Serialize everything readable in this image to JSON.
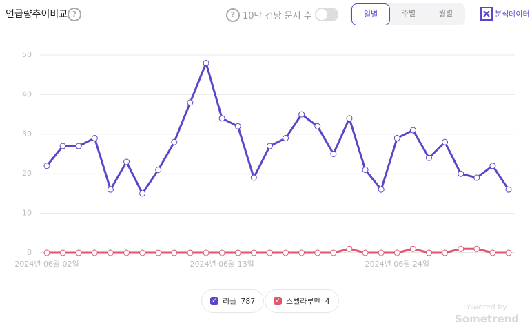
{
  "header": {
    "title": "언급량추이비교",
    "help": "?",
    "per_label": "10만 건당 문서 수",
    "tabs": [
      "일별",
      "주별",
      "월별"
    ],
    "export": "분석데이터"
  },
  "chart_data": {
    "type": "line",
    "categories": [
      "2024년 06월 02일",
      null,
      null,
      null,
      null,
      null,
      null,
      null,
      null,
      null,
      null,
      "2024년 06월 13일",
      null,
      null,
      null,
      null,
      null,
      null,
      null,
      null,
      null,
      null,
      "2024년 06월 24일",
      null,
      null,
      null,
      null,
      null,
      null,
      null
    ],
    "series": [
      {
        "name": "리플",
        "total": 787,
        "color": "#5a46c8",
        "values": [
          22,
          27,
          27,
          29,
          16,
          23,
          15,
          21,
          28,
          38,
          48,
          34,
          32,
          19,
          27,
          29,
          35,
          32,
          25,
          34,
          21,
          16,
          29,
          31,
          24,
          28,
          20,
          19,
          22,
          16
        ]
      },
      {
        "name": "스텔라루멘",
        "total": 4,
        "color": "#e0566e",
        "values": [
          0,
          0,
          0,
          0,
          0,
          0,
          0,
          0,
          0,
          0,
          0,
          0,
          0,
          0,
          0,
          0,
          0,
          0,
          0,
          1,
          0,
          0,
          0,
          1,
          0,
          0,
          1,
          1,
          0,
          0
        ]
      }
    ],
    "ylim": [
      0,
      50
    ],
    "yticks": [
      0,
      10,
      20,
      30,
      40,
      50
    ],
    "grid": true
  },
  "footer": {
    "powered": "Powered by",
    "brand": "Sometrend"
  }
}
